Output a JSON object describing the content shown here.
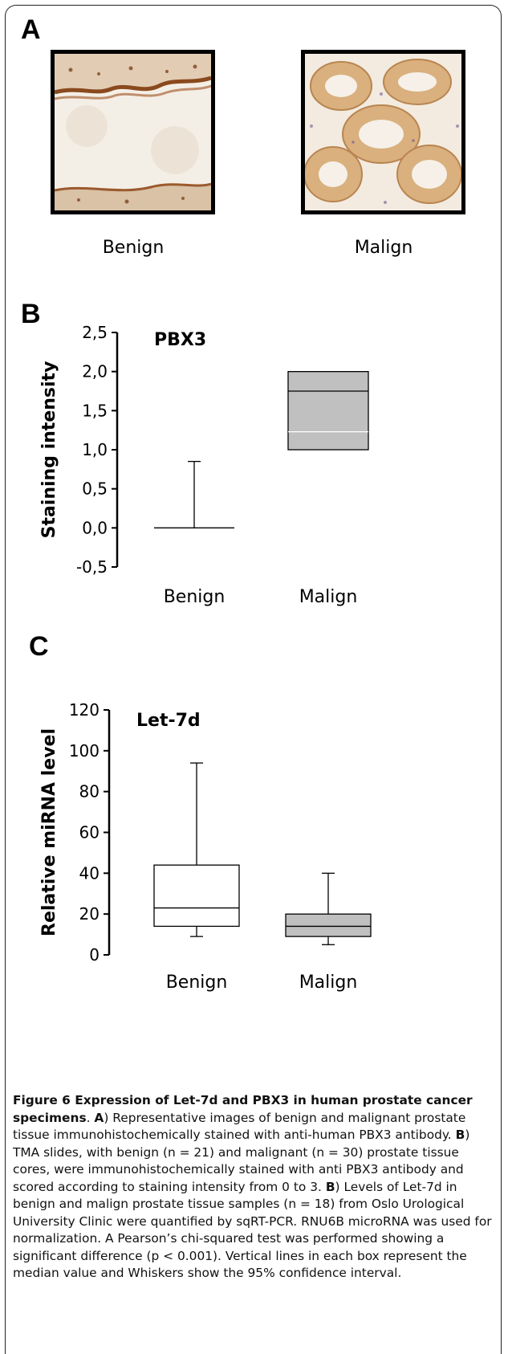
{
  "panel_a": {
    "letter": "A",
    "images": [
      {
        "label": "Benign",
        "description_icon": "micrograph-benign"
      },
      {
        "label": "Malign",
        "description_icon": "micrograph-malign"
      }
    ]
  },
  "panel_b_letter": "B",
  "panel_c_letter": "C",
  "chart_data": [
    {
      "type": "box",
      "title": "PBX3",
      "ylabel": "Staining intensity",
      "ylim": [
        -0.5,
        2.5
      ],
      "yticks": [
        -0.5,
        0.0,
        0.5,
        1.0,
        1.5,
        2.0,
        2.5
      ],
      "ytick_labels": [
        "-0,5",
        "0,0",
        "0,5",
        "1,0",
        "1,5",
        "2,0",
        "2,5"
      ],
      "categories": [
        "Benign",
        "Malign"
      ],
      "boxes": [
        {
          "name": "Benign",
          "whisker_low": 0.0,
          "q1": 0.0,
          "median": 0.0,
          "q3": 0.0,
          "whisker_high": 0.85,
          "fill": "#ffffff"
        },
        {
          "name": "Malign",
          "whisker_low": 1.0,
          "q1": 1.0,
          "median": 1.75,
          "mean": 1.23,
          "q3": 2.0,
          "whisker_high": 2.0,
          "fill": "#c0c0c0"
        }
      ]
    },
    {
      "type": "box",
      "title": "Let-7d",
      "ylabel": "Relative miRNA level",
      "ylim": [
        0,
        120
      ],
      "yticks": [
        0,
        20,
        40,
        60,
        80,
        100,
        120
      ],
      "ytick_labels": [
        "0",
        "20",
        "40",
        "60",
        "80",
        "100",
        "120"
      ],
      "categories": [
        "Benign",
        "Malign"
      ],
      "boxes": [
        {
          "name": "Benign",
          "whisker_low": 9,
          "q1": 14,
          "median": 23,
          "q3": 44,
          "whisker_high": 94,
          "fill": "#ffffff"
        },
        {
          "name": "Malign",
          "whisker_low": 5,
          "q1": 9,
          "median": 14,
          "q3": 20,
          "whisker_high": 40,
          "fill": "#c0c0c0"
        }
      ]
    }
  ],
  "caption": {
    "heading": "Figure 6 Expression of Let-7d and PBX3 in human prostate cancer specimens",
    "heading_end": ".",
    "a_label": "A",
    "a_text": ") Representative images of benign and malignant prostate tissue immunohistochemically stained with anti-human PBX3 antibody.",
    "b_label": "B",
    "b_text": ") TMA slides, with benign (n = 21) and malignant (n = 30) prostate tissue cores, were immunohistochemically stained with anti PBX3 antibody and scored according to staining intensity from 0 to 3.",
    "b2_label": "B",
    "b2_text": ") Levels of Let-7d in benign and malign prostate tissue samples (n = 18) from Oslo Urological University Clinic were quantified by sqRT-PCR. RNU6B microRNA was used for normalization. A Pearson’s chi-squared test was performed showing a significant difference (p < 0.001). Vertical lines in each box represent the median value and Whiskers show the 95% confidence interval."
  }
}
